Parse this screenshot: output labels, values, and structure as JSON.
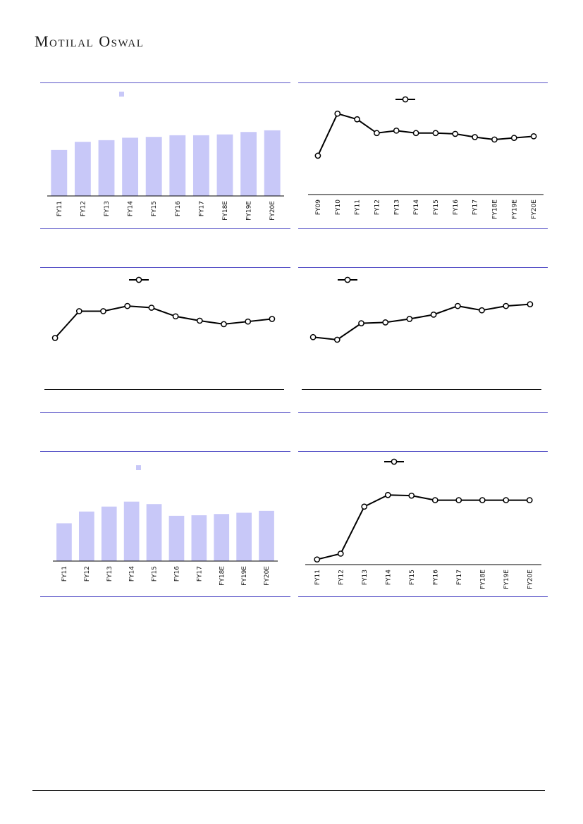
{
  "brand": {
    "name": "Motilal Oswal"
  },
  "colors": {
    "bar": "#c8c8f8",
    "line": "#000000",
    "rule": "#5a55c8"
  },
  "chart_data": [
    {
      "type": "bar",
      "categories": [
        "FY11",
        "FY12",
        "FY13",
        "FY14",
        "FY15",
        "FY16",
        "FY17",
        "FY18E",
        "FY19E",
        "FY20E"
      ],
      "values": [
        56,
        66,
        68,
        71,
        72,
        74,
        74,
        75,
        78,
        80
      ],
      "ylim": [
        0,
        110
      ],
      "legend": "top-center"
    },
    {
      "type": "line",
      "categories": [
        "FY09",
        "FY10",
        "FY11",
        "FY12",
        "FY13",
        "FY14",
        "FY15",
        "FY16",
        "FY17",
        "FY18E",
        "FY19E",
        "FY20E"
      ],
      "values": [
        48,
        100,
        93,
        76,
        79,
        76,
        76,
        75,
        71,
        68,
        70,
        72
      ],
      "ylim": [
        0,
        115
      ],
      "legend": "top-center"
    },
    {
      "type": "line",
      "categories": [
        "FY11",
        "FY12",
        "FY13",
        "FY14",
        "FY15",
        "FY16",
        "FY17",
        "FY18E",
        "FY19E",
        "FY20E"
      ],
      "values": [
        55,
        86,
        86,
        92,
        90,
        80,
        75,
        71,
        74,
        77
      ],
      "ylim": [
        0,
        110
      ],
      "legend": "top-center"
    },
    {
      "type": "line",
      "categories": [
        "FY11",
        "FY12",
        "FY13",
        "FY14",
        "FY15",
        "FY16",
        "FY17",
        "FY18E",
        "FY19E",
        "FY20E"
      ],
      "values": [
        56,
        53,
        72,
        73,
        77,
        82,
        92,
        87,
        92,
        94
      ],
      "ylim": [
        0,
        110
      ],
      "legend": "top-left"
    },
    {
      "type": "bar",
      "categories": [
        "FY11",
        "FY12",
        "FY13",
        "FY14",
        "FY15",
        "FY16",
        "FY17",
        "FY18E",
        "FY19E",
        "FY20E"
      ],
      "values": [
        61,
        80,
        88,
        96,
        92,
        73,
        74,
        76,
        78,
        81
      ],
      "ylim": [
        0,
        140
      ],
      "legend": "top-center"
    },
    {
      "type": "line",
      "categories": [
        "FY11",
        "FY12",
        "FY13",
        "FY14",
        "FY15",
        "FY16",
        "FY17",
        "FY18E",
        "FY19E",
        "FY20E"
      ],
      "values": [
        8,
        17,
        90,
        108,
        107,
        100,
        100,
        100,
        100,
        100
      ],
      "ylim": [
        0,
        140
      ],
      "legend": "top-center"
    }
  ]
}
